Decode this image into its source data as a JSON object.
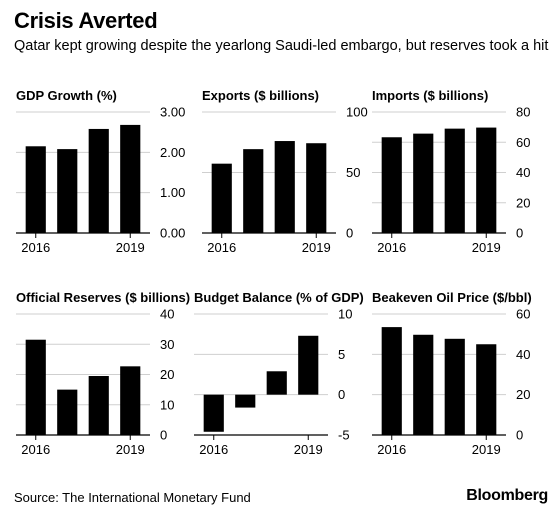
{
  "header": {
    "title": "Crisis Averted",
    "subtitle": "Qatar kept growing despite the yearlong Saudi-led embargo, but reserves took a hit"
  },
  "footer": {
    "source": "Source: The International Monetary Fund",
    "brand": "Bloomberg"
  },
  "chart_data": [
    {
      "type": "bar",
      "title": "GDP Growth (%)",
      "categories": [
        "2016",
        "2017",
        "2018",
        "2019"
      ],
      "x_tick_labels": [
        "2016",
        "2019"
      ],
      "values": [
        2.15,
        2.08,
        2.58,
        2.68
      ],
      "ylim": [
        0,
        3.0
      ],
      "yticks": [
        0,
        1,
        2,
        3
      ],
      "ytick_labels": [
        "0.00",
        "1.00",
        "2.00",
        "3.00"
      ],
      "grid": true,
      "bar_color": "#000000"
    },
    {
      "type": "bar",
      "title": "Exports ($ billions)",
      "categories": [
        "2016",
        "2017",
        "2018",
        "2019"
      ],
      "x_tick_labels": [
        "2016",
        "2019"
      ],
      "values": [
        57.3,
        69.3,
        76.0,
        74.2
      ],
      "ylim": [
        0,
        100
      ],
      "yticks": [
        0,
        50,
        100
      ],
      "ytick_labels": [
        "0",
        "50",
        "100"
      ],
      "grid": true,
      "bar_color": "#000000"
    },
    {
      "type": "bar",
      "title": "Imports ($ billions)",
      "categories": [
        "2016",
        "2017",
        "2018",
        "2019"
      ],
      "x_tick_labels": [
        "2016",
        "2019"
      ],
      "values": [
        63.3,
        65.7,
        69.0,
        69.7
      ],
      "ylim": [
        0,
        80
      ],
      "yticks": [
        0,
        20,
        40,
        60,
        80
      ],
      "ytick_labels": [
        "0",
        "20",
        "40",
        "60",
        "80"
      ],
      "grid": true,
      "bar_color": "#000000"
    },
    {
      "type": "bar",
      "title": "Official Reserves ($ billions)",
      "categories": [
        "2016",
        "2017",
        "2018",
        "2019"
      ],
      "x_tick_labels": [
        "2016",
        "2019"
      ],
      "values": [
        31.5,
        15.0,
        19.5,
        22.7
      ],
      "ylim": [
        0,
        40
      ],
      "yticks": [
        0,
        10,
        20,
        30,
        40
      ],
      "ytick_labels": [
        "0",
        "10",
        "20",
        "30",
        "40"
      ],
      "grid": true,
      "bar_color": "#000000"
    },
    {
      "type": "bar",
      "title": "Budget Balance (% of GDP)",
      "categories": [
        "2016",
        "2017",
        "2018",
        "2019"
      ],
      "x_tick_labels": [
        "2016",
        "2019"
      ],
      "values": [
        -4.6,
        -1.6,
        2.9,
        7.3
      ],
      "ylim": [
        -5,
        10
      ],
      "yticks": [
        -5,
        0,
        5,
        10
      ],
      "ytick_labels": [
        "-5",
        "0",
        "5",
        "10"
      ],
      "grid": true,
      "bar_color": "#000000"
    },
    {
      "type": "bar",
      "title": "Beakeven Oil Price ($/bbl)",
      "categories": [
        "2016",
        "2017",
        "2018",
        "2019"
      ],
      "x_tick_labels": [
        "2016",
        "2019"
      ],
      "values": [
        53.5,
        49.7,
        47.7,
        45.0
      ],
      "ylim": [
        0,
        60
      ],
      "yticks": [
        0,
        20,
        40,
        60
      ],
      "ytick_labels": [
        "0",
        "20",
        "40",
        "60"
      ],
      "grid": true,
      "bar_color": "#000000"
    }
  ]
}
